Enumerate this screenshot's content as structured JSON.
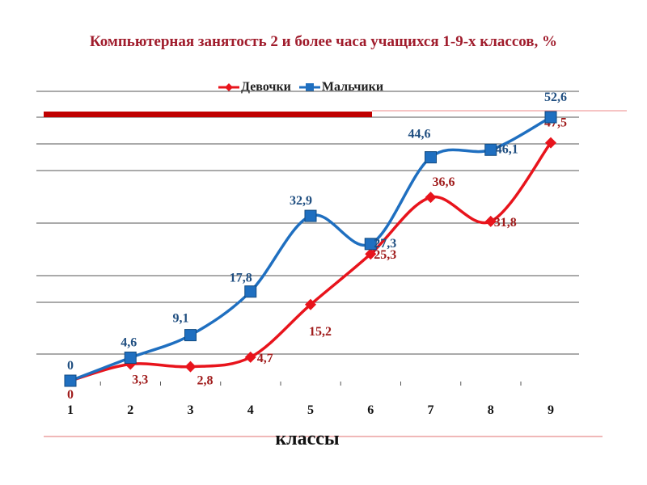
{
  "chart_data": {
    "type": "line",
    "title": "Компьютерная занятость 2 и более часа учащихся 1-9-х классов, %",
    "xlabel": "классы",
    "ylabel": "",
    "categories": [
      "1",
      "2",
      "3",
      "4",
      "5",
      "6",
      "7",
      "8",
      "9"
    ],
    "series": [
      {
        "name": "Девочки",
        "color": "#e8141c",
        "label_color": "#a01c1c",
        "marker": "diamond",
        "values": [
          0,
          3.3,
          2.8,
          4.7,
          15.2,
          25.3,
          36.6,
          31.8,
          47.5
        ],
        "labels": [
          "0",
          "3,3",
          "2,8",
          "4,7",
          "15,2",
          "25,3",
          "36,6",
          "31,8",
          "47,5"
        ]
      },
      {
        "name": "Мальчики",
        "color": "#1f6fc0",
        "label_color": "#1f4e80",
        "marker": "square",
        "values": [
          0,
          4.6,
          9.1,
          17.8,
          32.9,
          27.3,
          44.6,
          46.1,
          52.6
        ],
        "labels": [
          "0",
          "4,6",
          "9,1",
          "17,8",
          "32,9",
          "27,3",
          "44,6",
          "46,1",
          "52,6"
        ]
      }
    ],
    "ylim": [
      0,
      52.6
    ],
    "grid": true,
    "legend": "top",
    "smooth": true
  }
}
